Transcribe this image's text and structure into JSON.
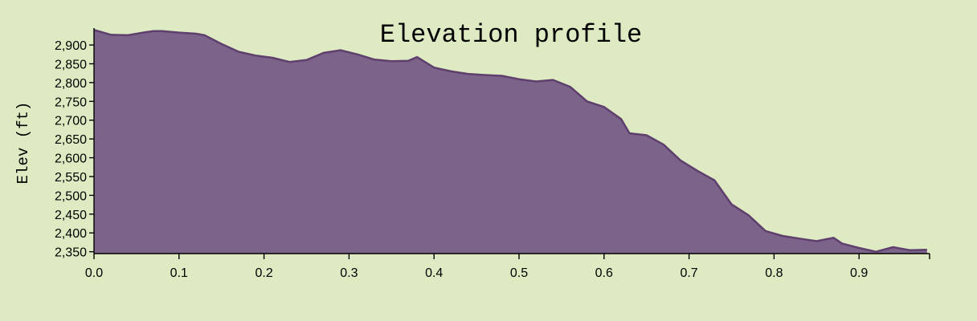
{
  "chart_data": {
    "type": "area",
    "title": "Elevation profile",
    "xlabel": "",
    "ylabel": "Elev (ft)",
    "xlim": [
      0,
      0.983
    ],
    "ylim": [
      2345,
      2945
    ],
    "x_ticks": [
      0.0,
      0.1,
      0.2,
      0.3,
      0.4,
      0.5,
      0.6,
      0.7,
      0.8,
      0.9
    ],
    "x_tick_labels": [
      "0.0",
      "0.1",
      "0.2",
      "0.3",
      "0.4",
      "0.5",
      "0.6",
      "0.7",
      "0.8",
      "0.9"
    ],
    "y_ticks": [
      2350,
      2400,
      2450,
      2500,
      2550,
      2600,
      2650,
      2700,
      2750,
      2800,
      2850,
      2900
    ],
    "y_tick_labels": [
      "2,350",
      "2,400",
      "2,450",
      "2,500",
      "2,550",
      "2,600",
      "2,650",
      "2,700",
      "2,750",
      "2,800",
      "2,850",
      "2,900"
    ],
    "grid": false,
    "colors": {
      "fill": "#7c6389",
      "stroke": "#5e3f6e",
      "background": "#deebc2"
    },
    "series": [
      {
        "x": [
          0,
          0.02,
          0.04,
          0.06,
          0.07,
          0.08,
          0.1,
          0.12,
          0.13,
          0.15,
          0.17,
          0.19,
          0.21,
          0.23,
          0.25,
          0.27,
          0.29,
          0.31,
          0.33,
          0.35,
          0.37,
          0.38,
          0.4,
          0.42,
          0.44,
          0.46,
          0.48,
          0.5,
          0.52,
          0.54,
          0.56,
          0.58,
          0.6,
          0.62,
          0.63,
          0.65,
          0.67,
          0.69,
          0.71,
          0.73,
          0.75,
          0.77,
          0.79,
          0.81,
          0.83,
          0.85,
          0.87,
          0.88,
          0.9,
          0.92,
          0.94,
          0.96,
          0.98
        ],
        "values": [
          2940,
          2927,
          2926,
          2934,
          2937,
          2937,
          2933,
          2930,
          2926,
          2903,
          2882,
          2872,
          2866,
          2855,
          2860,
          2879,
          2886,
          2875,
          2861,
          2857,
          2858,
          2868,
          2840,
          2830,
          2823,
          2820,
          2818,
          2809,
          2803,
          2807,
          2789,
          2750,
          2735,
          2703,
          2665,
          2660,
          2635,
          2593,
          2565,
          2540,
          2476,
          2447,
          2405,
          2392,
          2385,
          2378,
          2387,
          2372,
          2360,
          2350,
          2362,
          2354,
          2355
        ]
      }
    ]
  }
}
